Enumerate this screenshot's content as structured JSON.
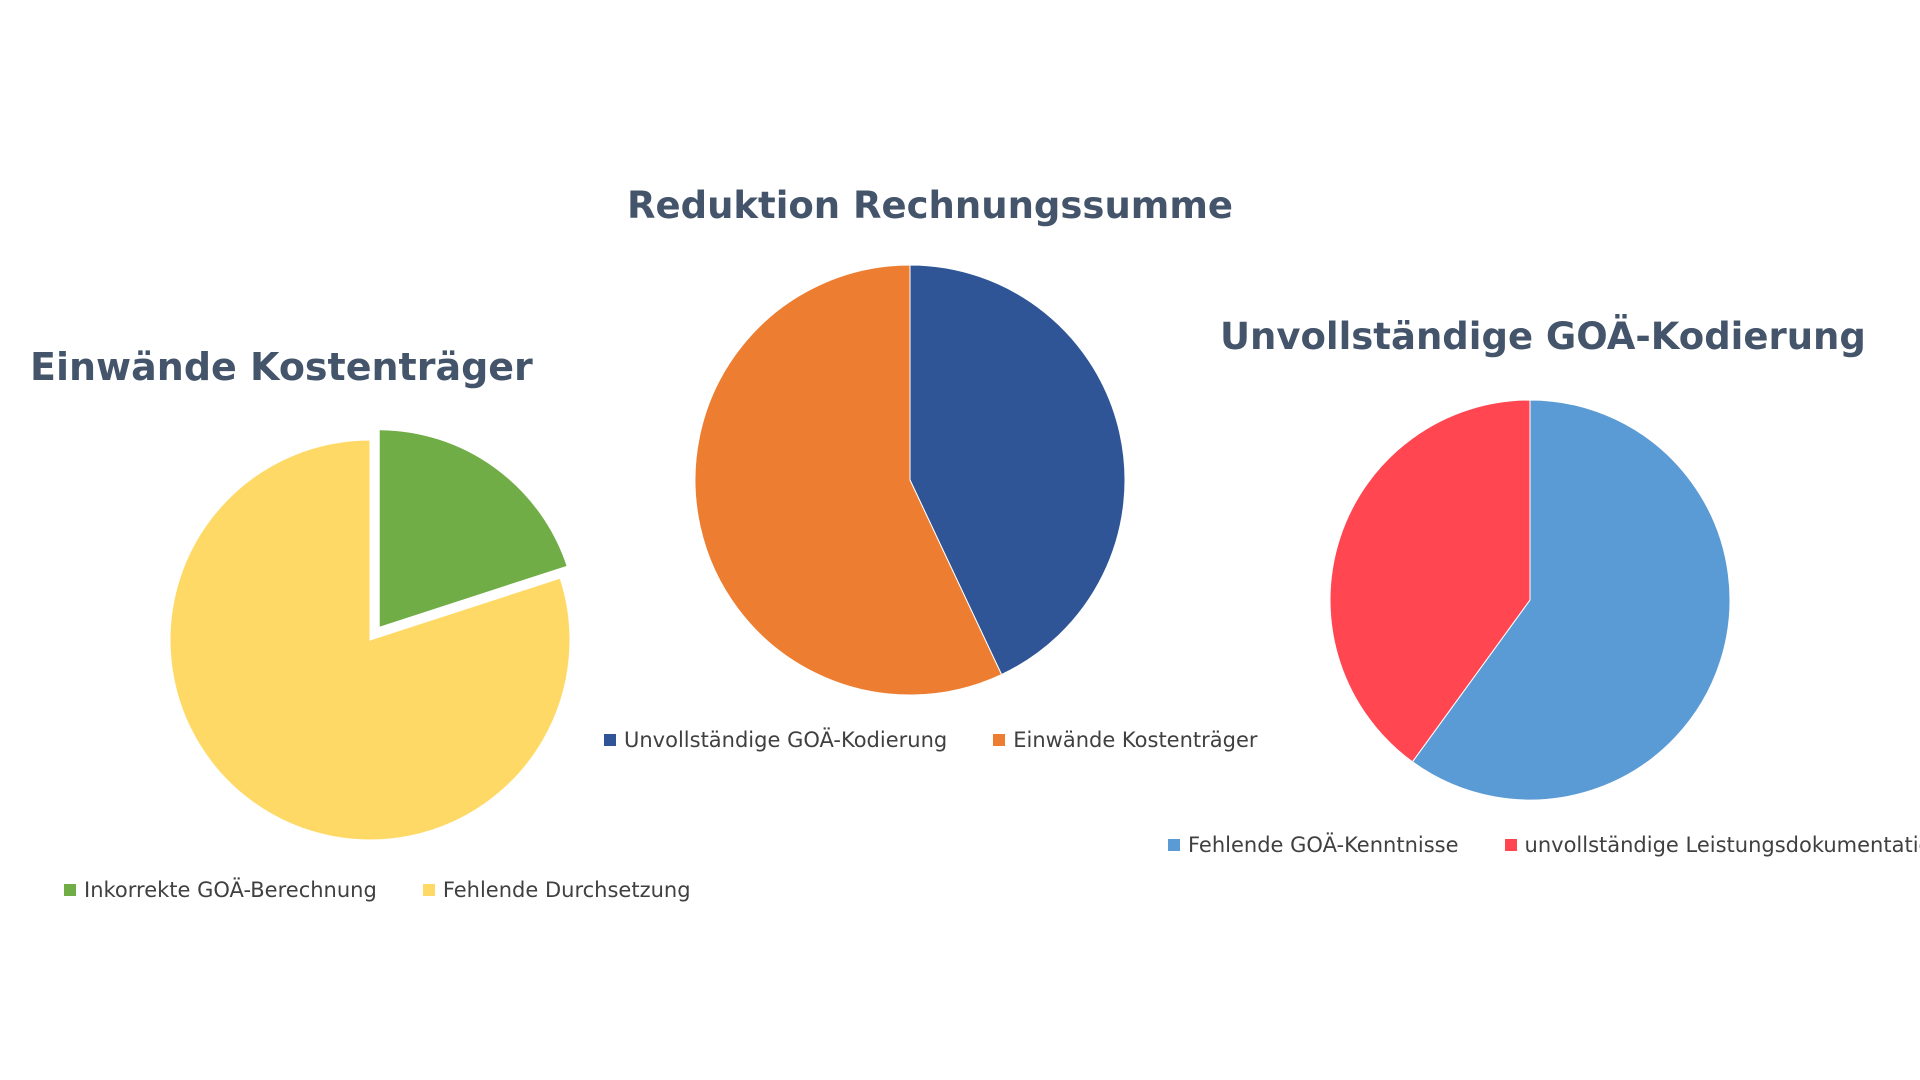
{
  "chart_data": [
    {
      "type": "pie",
      "title": "Einwände Kostenträger",
      "categories": [
        "Inkorrekte GOÄ-Berechnung",
        "Fehlende Durchsetzung"
      ],
      "values": [
        20,
        80
      ],
      "colors": [
        "#70ad47",
        "#ffd966"
      ],
      "exploded": [
        true,
        false
      ],
      "legend": "bottom"
    },
    {
      "type": "pie",
      "title": "Reduktion Rechnungssumme",
      "categories": [
        "Unvollständige GOÄ-Kodierung",
        "Einwände Kostenträger"
      ],
      "values": [
        43,
        57
      ],
      "colors": [
        "#2f5597",
        "#ed7d31"
      ],
      "exploded": [
        false,
        false
      ],
      "legend": "bottom"
    },
    {
      "type": "pie",
      "title": "Unvollständige GOÄ-Kodierung",
      "categories": [
        "Fehlende GOÄ-Kenntnisse",
        "unvollständige Leistungsdokumentation"
      ],
      "values": [
        60,
        40
      ],
      "colors": [
        "#5b9bd5",
        "#ff4651"
      ],
      "exploded": [
        false,
        false
      ],
      "legend": "bottom"
    }
  ]
}
